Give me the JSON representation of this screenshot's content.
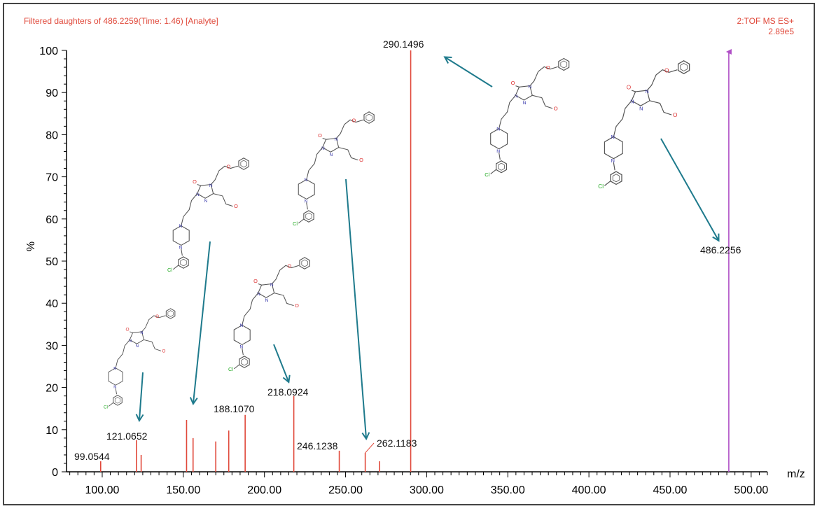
{
  "header": {
    "left_text": "Filtered daughters of 486.2259(Time: 1.46)   [Analyte]",
    "right_line1": "2:TOF MS ES+",
    "right_line2": "2.89e5"
  },
  "colors": {
    "peak": "#e0483a",
    "precursor": "#b04fc6",
    "arrow": "#1e7a8c",
    "axis": "#000000",
    "header": "#e0483a"
  },
  "chart_data": {
    "type": "bar",
    "title": "",
    "xlabel": "m/z",
    "ylabel": "%",
    "xlim": [
      78,
      510
    ],
    "ylim": [
      0,
      100
    ],
    "grid": false,
    "x_ticks": [
      "100.00",
      "150.00",
      "200.00",
      "250.00",
      "300.00",
      "350.00",
      "400.00",
      "450.00",
      "500.00"
    ],
    "y_ticks": [
      "0",
      "10",
      "20",
      "30",
      "40",
      "50",
      "60",
      "70",
      "80",
      "90",
      "100"
    ],
    "peaks": [
      {
        "mz": 99.0544,
        "intensity": 2.5,
        "label": "99.0544"
      },
      {
        "mz": 121.0652,
        "intensity": 7.5,
        "label": "121.0652"
      },
      {
        "mz": 124.0,
        "intensity": 4.0,
        "label": ""
      },
      {
        "mz": 152.0,
        "intensity": 12.3,
        "label": ""
      },
      {
        "mz": 156.0,
        "intensity": 8.0,
        "label": ""
      },
      {
        "mz": 170.0,
        "intensity": 7.2,
        "label": ""
      },
      {
        "mz": 178.0,
        "intensity": 9.8,
        "label": ""
      },
      {
        "mz": 188.107,
        "intensity": 13.5,
        "label": "188.1070"
      },
      {
        "mz": 218.0924,
        "intensity": 18.0,
        "label": "218.0924"
      },
      {
        "mz": 246.1238,
        "intensity": 5.0,
        "label": "246.1238"
      },
      {
        "mz": 262.1183,
        "intensity": 4.5,
        "label": "262.1183"
      },
      {
        "mz": 271.0,
        "intensity": 2.5,
        "label": ""
      },
      {
        "mz": 290.1496,
        "intensity": 100,
        "label": "290.1496"
      },
      {
        "mz": 486.2256,
        "intensity": 100,
        "label": "486.2256",
        "precursor": true
      }
    ]
  },
  "annotations": {
    "structure_atom_labels": [
      "O",
      "N",
      "N",
      "N",
      "O",
      "O",
      "N",
      "N",
      "Cl"
    ]
  }
}
